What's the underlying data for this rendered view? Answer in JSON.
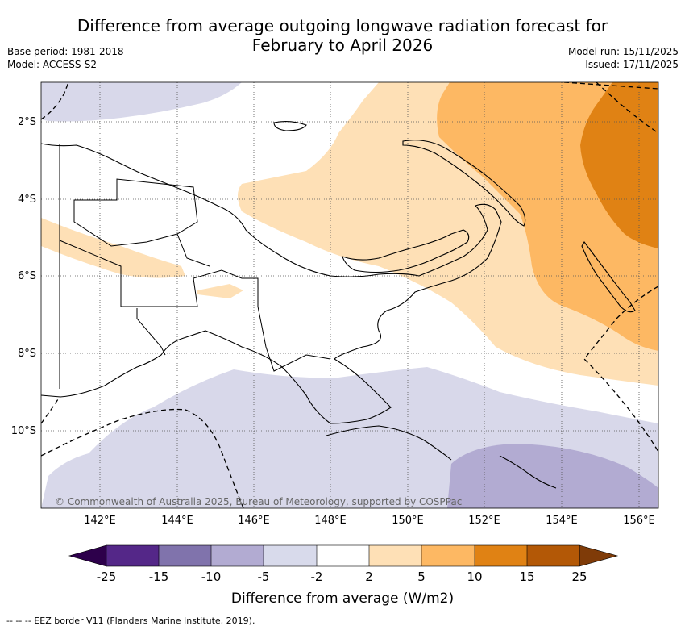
{
  "title_line1": "Difference from average outgoing longwave radiation forecast for",
  "title_line2": "February to April 2026",
  "meta": {
    "base_period": "Base period: 1981-2018",
    "model": "Model: ACCESS-S2",
    "model_run": "Model run: 15/11/2025",
    "issued": "Issued: 17/11/2025"
  },
  "map": {
    "lat_labels": [
      "2°S",
      "4°S",
      "6°S",
      "8°S",
      "10°S"
    ],
    "lon_labels": [
      "142°E",
      "144°E",
      "146°E",
      "148°E",
      "150°E",
      "152°E",
      "154°E",
      "156°E"
    ],
    "copyright": "© Commonwealth of Australia 2025, Bureau of Meteorology, supported by COSPPac",
    "colors": {
      "lav_light": "#d8d8ea",
      "lav_mid": "#b2abd2",
      "peach_light": "#fee0b6",
      "orange_mid": "#fdb863",
      "orange_dark": "#e08214"
    }
  },
  "colorbar": {
    "labels": [
      "-25",
      "-15",
      "-10",
      "-5",
      "-2",
      "2",
      "5",
      "10",
      "15",
      "25"
    ],
    "colors": [
      "#2d004b",
      "#542788",
      "#8073ac",
      "#b2abd2",
      "#d8daeb",
      "#ffffff",
      "#fee0b6",
      "#fdb863",
      "#e08214",
      "#b35806",
      "#7f3b08"
    ],
    "title": "Difference from average (W/m2)"
  },
  "footnote": "--  --  -- EEZ border V11 (Flanders Marine Institute, 2019)."
}
